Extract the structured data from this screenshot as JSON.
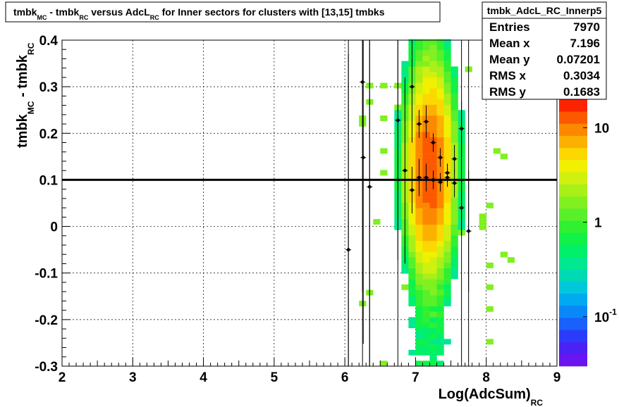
{
  "title": {
    "p1": "tmbk",
    "s1": "MC",
    "p2": " - tmbk",
    "s2": "RC",
    "p3": " versus AdcL",
    "s3": "RC",
    "p4": " for Inner sectors for clusters with [13,15] tmbks"
  },
  "stats": {
    "name": "tmbk_AdcL_RC_Innerp5",
    "rows": [
      {
        "label": "Entries",
        "value": "7970"
      },
      {
        "label": "Mean x",
        "value": "7.196"
      },
      {
        "label": "Mean y",
        "value": "0.07201"
      },
      {
        "label": "RMS x",
        "value": "0.3034"
      },
      {
        "label": "RMS y",
        "value": "0.1683"
      }
    ]
  },
  "palette": {
    "labels": [
      {
        "main": "10",
        "exp": "",
        "value": 10
      },
      {
        "main": "1",
        "exp": "",
        "value": 1
      },
      {
        "main": "10",
        "exp": "-1",
        "value": 0.1
      }
    ],
    "zmin": 0.03,
    "zmax": 20,
    "colors": [
      "#6a14f0",
      "#4a22f5",
      "#2a3cfa",
      "#1a60fa",
      "#0a88f8",
      "#00aaf0",
      "#00c8d8",
      "#00dab4",
      "#00e890",
      "#00f06a",
      "#10f248",
      "#30f030",
      "#58f028",
      "#80f020",
      "#a8f018",
      "#d0f010",
      "#f0f000",
      "#fcd800",
      "#fcb000",
      "#fc8800",
      "#fc5800",
      "#fc2400"
    ]
  },
  "chart_data": {
    "type": "heatmap",
    "xlabel": {
      "main": "Log(AdcSum)",
      "sub": "RC"
    },
    "ylabel": {
      "p1": "tmbk",
      "s1": "MC",
      "p2": " - tmbk",
      "s2": "RC"
    },
    "xlim": [
      2,
      9
    ],
    "ylim": [
      -0.3,
      0.4
    ],
    "xticks": [
      2,
      3,
      4,
      5,
      6,
      7,
      8,
      9
    ],
    "yticks": [
      {
        "v": 0.4,
        "t": "0.4"
      },
      {
        "v": 0.3,
        "t": "0.3"
      },
      {
        "v": 0.2,
        "t": "0.2"
      },
      {
        "v": 0.1,
        "t": "0.1"
      },
      {
        "v": 0,
        "t": "0"
      },
      {
        "v": -0.1,
        "t": "-0.1"
      },
      {
        "v": -0.2,
        "t": "-0.2"
      },
      {
        "v": -0.3,
        "t": "-0.3"
      }
    ],
    "grid": true,
    "log_z": true,
    "reference_line_y": 0.1,
    "profile_points": [
      {
        "x": 6.05,
        "y": -0.05,
        "ey": 0.42
      },
      {
        "x": 6.25,
        "y": 0.31,
        "ey": 0.45
      },
      {
        "x": 6.26,
        "y": 0.148,
        "ey": 0.4
      },
      {
        "x": 6.35,
        "y": 0.085,
        "ey": 0.4
      },
      {
        "x": 6.75,
        "y": 0.228,
        "ey": 0.3
      },
      {
        "x": 6.85,
        "y": 0.12,
        "ey": 0.2
      },
      {
        "x": 6.95,
        "y": 0.3,
        "ey": 0.12
      },
      {
        "x": 6.95,
        "y": 0.078,
        "ey": 0.05
      },
      {
        "x": 7.05,
        "y": 0.105,
        "ey": 0.04
      },
      {
        "x": 7.05,
        "y": 0.22,
        "ey": 0.03
      },
      {
        "x": 7.15,
        "y": 0.225,
        "ey": 0.035
      },
      {
        "x": 7.15,
        "y": 0.105,
        "ey": 0.03
      },
      {
        "x": 7.25,
        "y": 0.18,
        "ey": 0.02
      },
      {
        "x": 7.25,
        "y": 0.1,
        "ey": 0.02
      },
      {
        "x": 7.35,
        "y": 0.095,
        "ey": 0.02
      },
      {
        "x": 7.35,
        "y": 0.148,
        "ey": 0.02
      },
      {
        "x": 7.45,
        "y": 0.115,
        "ey": 0.02
      },
      {
        "x": 7.45,
        "y": 0.105,
        "ey": 0.02
      },
      {
        "x": 7.55,
        "y": 0.145,
        "ey": 0.03
      },
      {
        "x": 7.55,
        "y": 0.093,
        "ey": 0.03
      },
      {
        "x": 7.65,
        "y": 0.21,
        "ey": 0.06
      },
      {
        "x": 7.65,
        "y": 0.04,
        "ey": 0.06
      },
      {
        "x": 7.75,
        "y": -0.01,
        "ey": 0.13
      }
    ],
    "extra_lines_x": [
      6.05,
      6.25,
      6.35,
      6.75,
      7.65,
      7.75
    ]
  }
}
